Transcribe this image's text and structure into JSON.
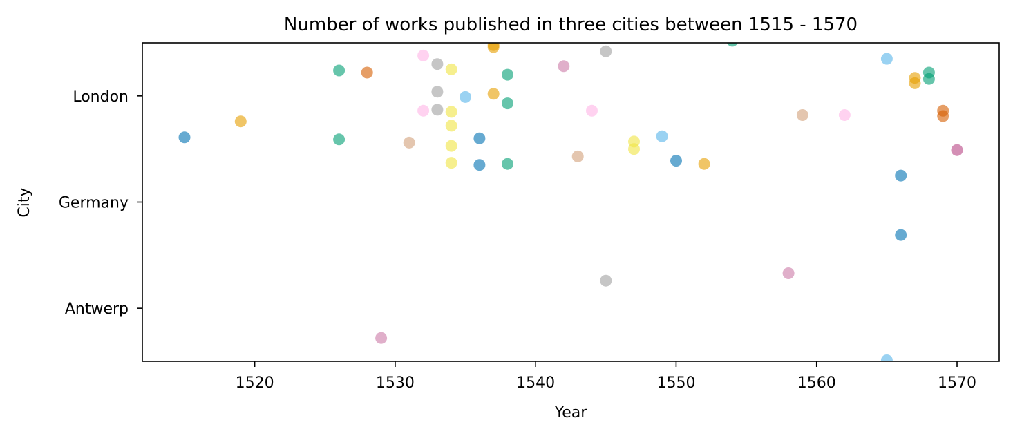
{
  "chart_data": {
    "type": "scatter",
    "title": "Number of works published in three cities between 1515 - 1570",
    "xlabel": "Year",
    "ylabel": "City",
    "xlim": [
      1512,
      1573
    ],
    "xticks": [
      1520,
      1530,
      1540,
      1550,
      1560,
      1570
    ],
    "categories": [
      "London",
      "Germany",
      "Antwerp"
    ],
    "ylim": [
      -0.5,
      2.5
    ],
    "grid": false,
    "legend": "none",
    "points": [
      {
        "x": 1515,
        "y": 0.39,
        "color": "#0072B2"
      },
      {
        "x": 1519,
        "y": 0.24,
        "color": "#E69F00"
      },
      {
        "x": 1526,
        "y": -0.24,
        "color": "#009E73"
      },
      {
        "x": 1526,
        "y": 0.41,
        "color": "#009E73"
      },
      {
        "x": 1528,
        "y": -0.22,
        "color": "#D55E00"
      },
      {
        "x": 1529,
        "y": 2.28,
        "color": "#CC79A7"
      },
      {
        "x": 1531,
        "y": 0.44,
        "color": "#D2A07A"
      },
      {
        "x": 1532,
        "y": -0.38,
        "color": "#FFB4E6"
      },
      {
        "x": 1532,
        "y": 0.14,
        "color": "#FFB4E6"
      },
      {
        "x": 1533,
        "y": -0.3,
        "color": "#A0A0A0"
      },
      {
        "x": 1533,
        "y": -0.04,
        "color": "#A0A0A0"
      },
      {
        "x": 1533,
        "y": 0.13,
        "color": "#A0A0A0"
      },
      {
        "x": 1534,
        "y": -0.25,
        "color": "#F0E442"
      },
      {
        "x": 1534,
        "y": 0.15,
        "color": "#F0E442"
      },
      {
        "x": 1534,
        "y": 0.28,
        "color": "#F0E442"
      },
      {
        "x": 1534,
        "y": 0.47,
        "color": "#F0E442"
      },
      {
        "x": 1534,
        "y": 0.63,
        "color": "#F0E442"
      },
      {
        "x": 1535,
        "y": 0.01,
        "color": "#56B4E9"
      },
      {
        "x": 1536,
        "y": 0.4,
        "color": "#0072B2"
      },
      {
        "x": 1536,
        "y": 0.65,
        "color": "#0072B2"
      },
      {
        "x": 1537,
        "y": -0.48,
        "color": "#E69F00"
      },
      {
        "x": 1537,
        "y": -0.46,
        "color": "#E69F00"
      },
      {
        "x": 1537,
        "y": -0.02,
        "color": "#E69F00"
      },
      {
        "x": 1538,
        "y": -0.2,
        "color": "#009E73"
      },
      {
        "x": 1538,
        "y": 0.07,
        "color": "#009E73"
      },
      {
        "x": 1538,
        "y": 0.64,
        "color": "#009E73"
      },
      {
        "x": 1542,
        "y": -0.28,
        "color": "#CC79A7"
      },
      {
        "x": 1543,
        "y": 0.57,
        "color": "#D2A07A"
      },
      {
        "x": 1544,
        "y": 0.14,
        "color": "#FFB4E6"
      },
      {
        "x": 1545,
        "y": -0.42,
        "color": "#A0A0A0"
      },
      {
        "x": 1545,
        "y": 1.74,
        "color": "#A0A0A0"
      },
      {
        "x": 1547,
        "y": 0.43,
        "color": "#F0E442"
      },
      {
        "x": 1547,
        "y": 0.5,
        "color": "#F0E442"
      },
      {
        "x": 1549,
        "y": 0.38,
        "color": "#56B4E9"
      },
      {
        "x": 1550,
        "y": 0.61,
        "color": "#0072B2"
      },
      {
        "x": 1552,
        "y": 0.64,
        "color": "#E69F00"
      },
      {
        "x": 1554,
        "y": -0.52,
        "color": "#009E73"
      },
      {
        "x": 1558,
        "y": 1.67,
        "color": "#CC79A7"
      },
      {
        "x": 1559,
        "y": 0.18,
        "color": "#D2A07A"
      },
      {
        "x": 1562,
        "y": 0.18,
        "color": "#FFB4E6"
      },
      {
        "x": 1565,
        "y": -0.35,
        "color": "#56B4E9"
      },
      {
        "x": 1565,
        "y": 2.49,
        "color": "#56B4E9"
      },
      {
        "x": 1566,
        "y": 0.75,
        "color": "#0072B2"
      },
      {
        "x": 1566,
        "y": 1.31,
        "color": "#0072B2"
      },
      {
        "x": 1567,
        "y": -0.17,
        "color": "#E69F00"
      },
      {
        "x": 1567,
        "y": -0.12,
        "color": "#E69F00"
      },
      {
        "x": 1568,
        "y": -0.22,
        "color": "#009E73"
      },
      {
        "x": 1568,
        "y": -0.16,
        "color": "#009E73"
      },
      {
        "x": 1569,
        "y": 0.14,
        "color": "#D55E00"
      },
      {
        "x": 1569,
        "y": 0.19,
        "color": "#D55E00"
      },
      {
        "x": 1570,
        "y": 0.51,
        "color": "#CC79A7"
      },
      {
        "x": 1570,
        "y": 0.51,
        "color": "#CC79A7"
      }
    ]
  }
}
